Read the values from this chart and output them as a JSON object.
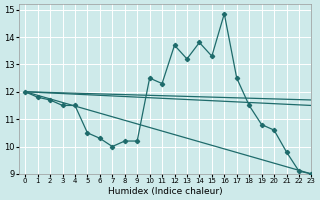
{
  "xlabel": "Humidex (Indice chaleur)",
  "bg_color": "#ceeaea",
  "grid_color": "#ffffff",
  "line_color": "#1e6b6b",
  "xlim": [
    -0.5,
    23
  ],
  "ylim": [
    9,
    15.2
  ],
  "xticks": [
    0,
    1,
    2,
    3,
    4,
    5,
    6,
    7,
    8,
    9,
    10,
    11,
    12,
    13,
    14,
    15,
    16,
    17,
    18,
    19,
    20,
    21,
    22,
    23
  ],
  "yticks": [
    9,
    10,
    11,
    12,
    13,
    14,
    15
  ],
  "line1_x": [
    0,
    1,
    2,
    3,
    4,
    5,
    6,
    7,
    8,
    9,
    10,
    11,
    12,
    13,
    14,
    15,
    16,
    17,
    18,
    19,
    20,
    21,
    22,
    23
  ],
  "line1_y": [
    12.0,
    11.8,
    11.7,
    11.5,
    11.5,
    10.5,
    10.3,
    10.0,
    10.2,
    10.2,
    12.5,
    12.3,
    13.7,
    13.2,
    13.8,
    13.3,
    14.85,
    12.5,
    11.5,
    10.8,
    10.6,
    9.8,
    9.1,
    9.0
  ],
  "line2_x": [
    0,
    23
  ],
  "line2_y": [
    12.0,
    11.5
  ],
  "line3_x": [
    0,
    23
  ],
  "line3_y": [
    12.0,
    11.7
  ],
  "line4_x": [
    0,
    23
  ],
  "line4_y": [
    12.0,
    9.0
  ]
}
